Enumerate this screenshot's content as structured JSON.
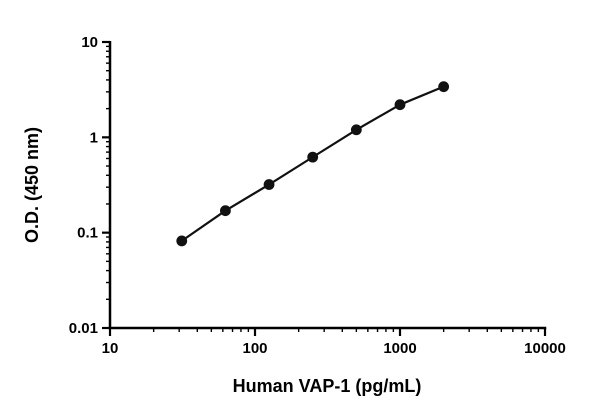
{
  "chart_data": {
    "type": "line",
    "x": [
      31.25,
      62.5,
      125,
      250,
      500,
      1000,
      2000
    ],
    "y": [
      0.082,
      0.17,
      0.32,
      0.62,
      1.2,
      2.2,
      3.4
    ],
    "title": "",
    "xlabel": "Human VAP-1 (pg/mL)",
    "ylabel": "O.D. (450 nm)",
    "x_scale": "log",
    "y_scale": "log",
    "xlim": [
      10,
      10000
    ],
    "ylim": [
      0.01,
      10
    ],
    "x_ticks": [
      10,
      100,
      1000,
      10000
    ],
    "x_tick_labels": [
      "10",
      "100",
      "1000",
      "10000"
    ],
    "y_ticks": [
      0.01,
      0.1,
      1,
      10
    ],
    "y_tick_labels": [
      "0.01",
      "0.1",
      "1",
      "10"
    ],
    "grid": false,
    "legend": "none",
    "axis_color": "#000000",
    "line_color": "#111111",
    "marker_color": "#111111",
    "marker": "circle"
  }
}
